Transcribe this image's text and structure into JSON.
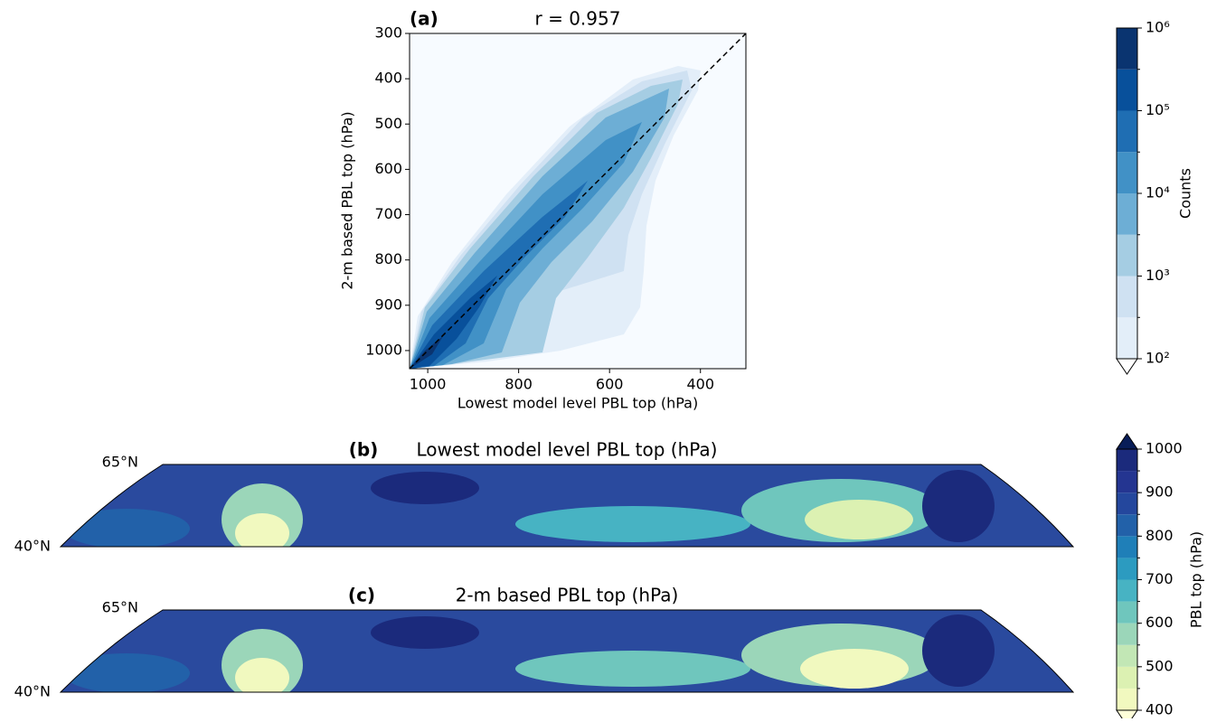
{
  "chart_data": [
    {
      "type": "density",
      "panel_label": "(a)",
      "title": "r = 0.957",
      "x_label": "Lowest model level PBL top (hPa)",
      "y_label": "2-m based PBL top (hPa)",
      "xlim": [
        1040,
        300
      ],
      "ylim": [
        1040,
        300
      ],
      "xticks": [
        1000,
        800,
        600,
        400
      ],
      "yticks": [
        300,
        400,
        500,
        600,
        700,
        800,
        900,
        1000
      ]
    },
    {
      "type": "colorbar",
      "label": "Counts",
      "log": true,
      "extend": "min",
      "ylim": [
        100,
        1000000
      ],
      "levels": [
        100,
        316,
        1000,
        3162,
        10000,
        31623,
        100000,
        316228,
        1000000
      ],
      "colors": [
        "#e3eef9",
        "#cfe1f2",
        "#a5cde3",
        "#6daed5",
        "#4191c6",
        "#1f6eb3",
        "#08509b",
        "#0a3470"
      ],
      "extend_color": "#ffffff",
      "yticks": [
        {
          "value": 100,
          "label": "10²"
        },
        {
          "value": 1000,
          "label": "10³"
        },
        {
          "value": 10000,
          "label": "10⁴"
        },
        {
          "value": 100000,
          "label": "10⁵"
        },
        {
          "value": 1000000,
          "label": "10⁶"
        }
      ]
    },
    {
      "type": "map",
      "panel_label": "(b)",
      "title": "Lowest model level PBL top (hPa)",
      "lat_labels": [
        "65°N",
        "40°N"
      ]
    },
    {
      "type": "map",
      "panel_label": "(c)",
      "title": "2-m based PBL top (hPa)",
      "lat_labels": [
        "65°N",
        "40°N"
      ]
    },
    {
      "type": "colorbar",
      "label": "PBL top (hPa)",
      "log": false,
      "extend": "both",
      "ylim": [
        400,
        1000
      ],
      "levels": [
        400,
        450,
        500,
        550,
        600,
        650,
        700,
        750,
        800,
        850,
        900,
        950,
        1000
      ],
      "colors": [
        "#f1f9bf",
        "#dcf1b2",
        "#c2e7b5",
        "#9bd6b9",
        "#6fc6bd",
        "#47b3c3",
        "#2c9bc0",
        "#1f7fb8",
        "#2261a9",
        "#24479d",
        "#243591",
        "#1b2a7c"
      ],
      "extend_color": "#081d58",
      "extend_low_color": "#ffffd9",
      "yticks": [
        400,
        500,
        600,
        700,
        800,
        900,
        1000
      ]
    }
  ]
}
